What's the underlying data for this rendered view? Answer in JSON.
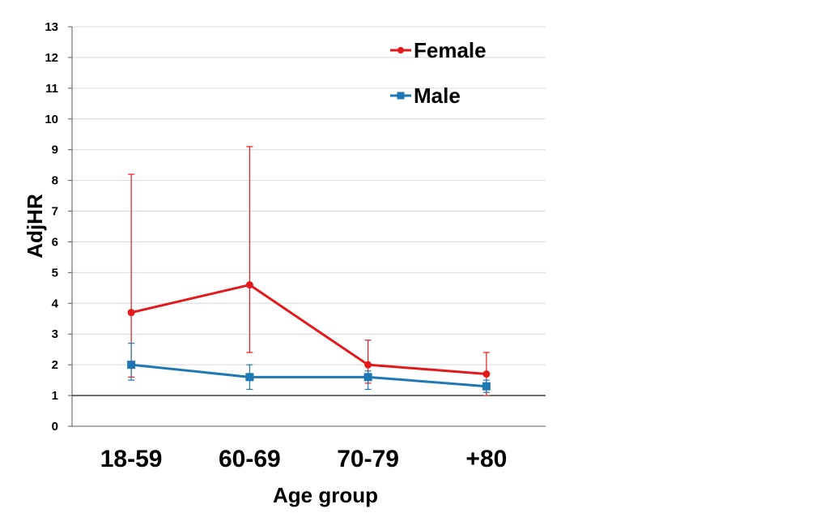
{
  "chart_data": {
    "type": "line",
    "title": "",
    "xlabel": "Age group",
    "ylabel": "AdjHR",
    "ylim": [
      0,
      13
    ],
    "yticks": [
      "0",
      "1",
      "2",
      "3",
      "4",
      "5",
      "6",
      "7",
      "8",
      "9",
      "10",
      "11",
      "12",
      "13"
    ],
    "categories": [
      "18-59",
      "60-69",
      "70-79",
      "+80"
    ],
    "grid": true,
    "reference_line": 1,
    "legend": "top-right",
    "series": [
      {
        "name": "Female",
        "color": "#e31a1c",
        "marker": "circle",
        "values": [
          3.7,
          4.6,
          2.0,
          1.7
        ],
        "error_upper": [
          8.2,
          9.1,
          2.8,
          2.4
        ],
        "error_lower": [
          1.6,
          2.4,
          1.4,
          1.0
        ]
      },
      {
        "name": "Male",
        "color": "#1f78b4",
        "marker": "square",
        "values": [
          2.0,
          1.6,
          1.6,
          1.3
        ],
        "error_upper": [
          2.7,
          2.0,
          1.8,
          1.5
        ],
        "error_lower": [
          1.5,
          1.2,
          1.2,
          1.1
        ]
      }
    ]
  }
}
